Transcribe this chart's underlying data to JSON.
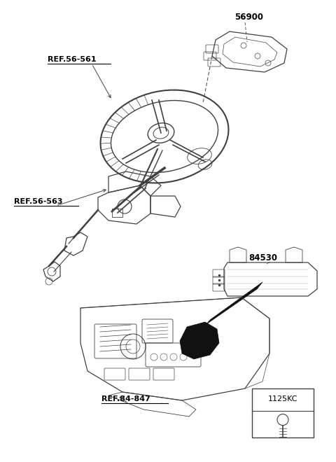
{
  "bg_color": "#ffffff",
  "line_color": "#404040",
  "text_color": "#000000",
  "labels": {
    "ref_56_561": "REF.56-561",
    "ref_56_563": "REF.56-563",
    "ref_84_847": "REF.84-847",
    "part_56900": "56900",
    "part_84530": "84530",
    "part_1125KC": "1125KC"
  },
  "fig_width": 4.8,
  "fig_height": 6.6,
  "dpi": 100
}
